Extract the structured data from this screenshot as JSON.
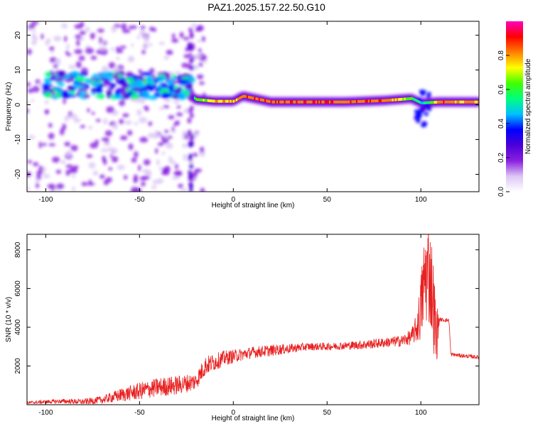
{
  "title": "PAZ1.2025.157.22.50.G10",
  "chart_data": [
    {
      "type": "heatmap",
      "title": "PAZ1.2025.157.22.50.G10",
      "xlabel": "Height of straight line (km)",
      "ylabel": "Frequency (Hz)",
      "xlim": [
        -110,
        131
      ],
      "ylim": [
        -25,
        24
      ],
      "xticks": [
        "-100",
        "-50",
        "0",
        "50",
        "100"
      ],
      "yticks": [
        "-20",
        "-10",
        "0",
        "10",
        "20"
      ],
      "colorbar": {
        "label": "Normalized spectral amplitude",
        "range": [
          0,
          1
        ],
        "ticks": [
          "0.0",
          "0.2",
          "0.4",
          "0.6",
          "0.8"
        ],
        "colors": [
          "#ffffff",
          "#dcc6f5",
          "#8a1fe0",
          "#4b00d8",
          "#0000ff",
          "#00c0ff",
          "#00ff7f",
          "#40ff00",
          "#ffff00",
          "#ff7f00",
          "#ff0000",
          "#ff00c0"
        ]
      },
      "ridge": [
        {
          "x": -100,
          "f": 4.5,
          "amp": 0.35
        },
        {
          "x": -90,
          "f": 4.0,
          "amp": 0.45
        },
        {
          "x": -80,
          "f": 5.0,
          "amp": 0.3
        },
        {
          "x": -70,
          "f": 4.0,
          "amp": 0.4
        },
        {
          "x": -60,
          "f": 4.5,
          "amp": 0.45
        },
        {
          "x": -50,
          "f": 5.0,
          "amp": 0.4
        },
        {
          "x": -40,
          "f": 6.0,
          "amp": 0.45
        },
        {
          "x": -30,
          "f": 5.5,
          "amp": 0.4
        },
        {
          "x": -20,
          "f": 1.5,
          "amp": 0.7
        },
        {
          "x": -10,
          "f": 1.0,
          "amp": 0.85
        },
        {
          "x": 0,
          "f": 1.0,
          "amp": 0.9
        },
        {
          "x": 5,
          "f": 2.5,
          "amp": 0.95
        },
        {
          "x": 20,
          "f": 0.8,
          "amp": 1.0
        },
        {
          "x": 40,
          "f": 0.8,
          "amp": 1.0
        },
        {
          "x": 60,
          "f": 0.8,
          "amp": 0.95
        },
        {
          "x": 80,
          "f": 1.2,
          "amp": 0.95
        },
        {
          "x": 95,
          "f": 1.8,
          "amp": 0.7
        },
        {
          "x": 100,
          "f": 0.5,
          "amp": 0.5
        },
        {
          "x": 110,
          "f": 0.8,
          "amp": 0.95
        },
        {
          "x": 125,
          "f": 0.8,
          "amp": 0.9
        }
      ]
    },
    {
      "type": "line",
      "xlabel": "Height of straight line (km)",
      "ylabel": "SNR (10 * v/v)",
      "xlim": [
        -110,
        131
      ],
      "ylim": [
        0,
        8800
      ],
      "xticks": [
        "-100",
        "-50",
        "0",
        "50",
        "100"
      ],
      "yticks": [
        "2000",
        "4000",
        "6000",
        "8000"
      ],
      "color": "#e82020",
      "x": [
        -110,
        -100,
        -90,
        -80,
        -70,
        -60,
        -50,
        -40,
        -30,
        -20,
        -15,
        -10,
        -5,
        0,
        10,
        20,
        30,
        40,
        50,
        60,
        70,
        80,
        90,
        95,
        98,
        100,
        102,
        104,
        106,
        108,
        110,
        115,
        116,
        120,
        125,
        131
      ],
      "values": [
        100,
        150,
        180,
        150,
        250,
        500,
        700,
        900,
        1000,
        1200,
        2000,
        2200,
        2400,
        2500,
        2700,
        2800,
        2900,
        3000,
        3000,
        3050,
        3100,
        3200,
        3300,
        3500,
        4000,
        5000,
        6500,
        7000,
        6000,
        3500,
        4400,
        4350,
        2600,
        2550,
        2500,
        2450
      ],
      "noise": [
        80,
        100,
        120,
        150,
        200,
        350,
        450,
        500,
        500,
        450,
        500,
        450,
        400,
        350,
        300,
        300,
        250,
        200,
        200,
        200,
        250,
        250,
        300,
        400,
        800,
        1800,
        2500,
        2800,
        2500,
        2000,
        100,
        100,
        100,
        100,
        100,
        100
      ]
    }
  ]
}
